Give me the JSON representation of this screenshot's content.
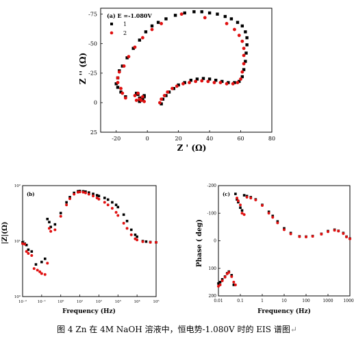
{
  "caption": "图 4 Zn 在 4M NaOH 溶液中，恒电势-1.080V 时的 EIS 谱图",
  "caption_tail": "↵",
  "colors": {
    "series1": "#000000",
    "series2": "#e01010"
  },
  "chart_data": [
    {
      "type": "scatter",
      "panel_label": "(a) E =-1.080V",
      "xlabel": "Z ' (Ω)",
      "ylabel": "Z '' (Ω)",
      "xlim": [
        -30,
        80
      ],
      "ylim": [
        25,
        -80
      ],
      "xticks": [
        "-20",
        "0",
        "20",
        "40",
        "60",
        "80"
      ],
      "xtick_values": [
        -20,
        0,
        20,
        40,
        60,
        80
      ],
      "yticks": [
        "25",
        "0",
        "-25",
        "-50",
        "-75"
      ],
      "ytick_values": [
        25,
        0,
        -25,
        -50,
        -75
      ],
      "series": [
        {
          "name": "1",
          "marker": "square",
          "x": [
            9,
            10,
            12,
            14,
            17,
            20,
            24,
            28,
            32,
            36,
            40,
            44,
            48,
            52,
            56,
            59,
            61,
            62,
            63,
            63.5,
            64,
            64,
            63,
            61,
            58,
            54,
            50,
            45,
            40,
            35,
            30,
            24,
            18,
            12,
            7,
            3,
            -1,
            -5,
            -9,
            -13,
            -16,
            -18,
            -19,
            -20,
            -19,
            -17,
            -14,
            -5,
            -4,
            -5,
            -6,
            -7,
            -3,
            -2,
            -2
          ],
          "y": [
            1,
            -3,
            -6,
            -9,
            -12,
            -15,
            -17,
            -19,
            -20,
            -20.5,
            -20,
            -19,
            -18,
            -17,
            -17,
            -18,
            -22,
            -28,
            -35,
            -42,
            -49,
            -55,
            -60,
            -65,
            -68,
            -71,
            -73,
            -75,
            -76,
            -77,
            -77,
            -76,
            -74,
            -71,
            -68,
            -65,
            -60,
            -53,
            -46,
            -38,
            -31,
            -27,
            -21,
            -16,
            -13,
            -9,
            -5,
            -1,
            -2,
            -4,
            -7,
            -8,
            -3,
            -5,
            -6
          ]
        },
        {
          "name": "2",
          "marker": "circle",
          "x": [
            8,
            9,
            11,
            13,
            16,
            19,
            23,
            27,
            31,
            35,
            39,
            43,
            47,
            51,
            55,
            58,
            60,
            61,
            62,
            62,
            62,
            61,
            59,
            56,
            51,
            37,
            22,
            9,
            3,
            -3,
            -8,
            -12,
            -15,
            -18,
            -19,
            -19,
            -17,
            -16,
            -14,
            -7,
            -5,
            -2,
            -3,
            -6,
            -8,
            -4
          ],
          "y": [
            0,
            -3,
            -6,
            -9,
            -12,
            -14,
            -16,
            -17,
            -18,
            -18.5,
            -18,
            -17,
            -17,
            -16,
            -16,
            -17,
            -20,
            -26,
            -33,
            -40,
            -46,
            -52,
            -57,
            -62,
            -67,
            -72,
            -75,
            -67,
            -62,
            -55,
            -47,
            -39,
            -31,
            -26,
            -21,
            -17,
            -12,
            -8,
            -4,
            -2,
            -3,
            -1,
            -5,
            -8,
            -6,
            -2
          ]
        }
      ]
    },
    {
      "type": "scatter",
      "panel_label": "(b)",
      "xlabel": "Frequency (Hz)",
      "ylabel": "|Z|(Ω)",
      "xscale": "log",
      "yscale": "log",
      "xlim": [
        0.01,
        100000
      ],
      "ylim": [
        1,
        100
      ],
      "xticks": [
        "10⁻²",
        "10⁻¹",
        "10⁰",
        "10¹",
        "10²",
        "10³",
        "10⁴",
        "10⁵"
      ],
      "xtick_values": [
        0.01,
        0.1,
        1,
        10,
        100,
        1000,
        10000,
        100000
      ],
      "yticks": [
        "10⁰",
        "10¹",
        "10²"
      ],
      "ytick_values": [
        1,
        10,
        100
      ],
      "series": [
        {
          "name": "1",
          "marker": "square",
          "x": [
            0.01,
            0.013,
            0.016,
            0.02,
            0.03,
            0.05,
            0.1,
            0.15,
            0.2,
            0.25,
            0.3,
            0.5,
            1,
            2,
            3,
            5,
            8,
            10,
            15,
            20,
            30,
            50,
            80,
            100,
            200,
            300,
            500,
            800,
            1000,
            2000,
            3000,
            5000,
            8000,
            10000,
            20000,
            30000,
            50000,
            100000
          ],
          "y": [
            9.5,
            9,
            8.5,
            7,
            6.5,
            3.8,
            4.2,
            4.8,
            25,
            22,
            18,
            20,
            32,
            50,
            62,
            74,
            79,
            80,
            79,
            78,
            75,
            71,
            67,
            65,
            60,
            56,
            50,
            45,
            41,
            30,
            23,
            16,
            13,
            12,
            10,
            9.8,
            9.6,
            9.5
          ]
        },
        {
          "name": "2",
          "marker": "circle",
          "x": [
            0.01,
            0.013,
            0.016,
            0.02,
            0.03,
            0.04,
            0.06,
            0.08,
            0.1,
            0.15,
            0.2,
            0.25,
            0.3,
            0.5,
            1,
            2,
            3,
            5,
            8,
            10,
            15,
            20,
            30,
            50,
            80,
            100,
            200,
            300,
            500,
            800,
            1000,
            2000,
            3000,
            5000,
            8000,
            10000,
            20000,
            50000,
            100000
          ],
          "y": [
            9,
            8.8,
            6.5,
            6,
            5.5,
            3.2,
            3,
            2.8,
            2.6,
            2.5,
            4,
            17,
            15,
            16,
            28,
            45,
            58,
            70,
            76,
            77,
            76,
            74,
            70,
            65,
            60,
            57,
            50,
            45,
            39,
            33,
            29,
            21,
            17,
            13,
            11,
            10.5,
            9.8,
            9.5,
            9.5
          ]
        }
      ]
    },
    {
      "type": "scatter",
      "panel_label": "(c)",
      "xlabel": "Frequency (Hz)",
      "ylabel": "Phase ( deg)",
      "xscale": "log",
      "xlim": [
        0.01,
        10000
      ],
      "ylim": [
        200,
        -200
      ],
      "xticks": [
        "0.01",
        "0.1",
        "1",
        "10",
        "100",
        "1000",
        "10000"
      ],
      "xtick_values": [
        0.01,
        0.1,
        1,
        10,
        100,
        1000,
        10000
      ],
      "yticks": [
        "-200",
        "-100",
        "0",
        "100",
        "200"
      ],
      "ytick_values": [
        -200,
        -100,
        0,
        100,
        200
      ],
      "series": [
        {
          "name": "1",
          "marker": "square",
          "x": [
            0.01,
            0.012,
            0.015,
            0.02,
            0.025,
            0.03,
            0.04,
            0.05,
            0.06,
            0.07,
            0.08,
            0.1,
            0.12,
            0.15,
            0.2,
            0.3,
            0.5,
            1,
            2,
            3,
            5,
            10,
            20,
            50,
            100,
            200,
            500,
            1000,
            2000,
            3000,
            5000,
            7000,
            10000
          ],
          "y": [
            155,
            150,
            140,
            130,
            118,
            112,
            125,
            160,
            -170,
            -150,
            -140,
            -120,
            -110,
            -165,
            -162,
            -158,
            -150,
            -130,
            -105,
            -90,
            -70,
            -45,
            -28,
            -16,
            -15,
            -17,
            -25,
            -35,
            -40,
            -36,
            -28,
            -15,
            -8
          ]
        },
        {
          "name": "2",
          "marker": "circle",
          "x": [
            0.01,
            0.012,
            0.015,
            0.02,
            0.025,
            0.03,
            0.04,
            0.05,
            0.06,
            0.07,
            0.08,
            0.1,
            0.12,
            0.15,
            0.2,
            0.3,
            0.5,
            1,
            2,
            3,
            5,
            10,
            20,
            50,
            100,
            200,
            500,
            1000,
            2000,
            3000,
            5000,
            7000,
            10000
          ],
          "y": [
            165,
            160,
            145,
            132,
            120,
            115,
            130,
            150,
            160,
            -155,
            -145,
            -130,
            -100,
            -95,
            -158,
            -155,
            -148,
            -128,
            -100,
            -85,
            -65,
            -40,
            -25,
            -15,
            -14,
            -16,
            -24,
            -33,
            -38,
            -35,
            -26,
            -14,
            -7
          ]
        }
      ]
    }
  ]
}
